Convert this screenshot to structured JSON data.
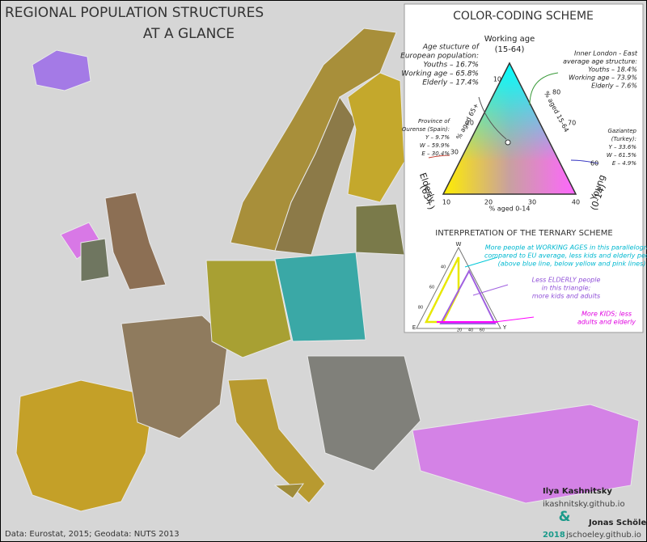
{
  "header": {
    "title": [
      "REGIONAL POPULATION STRUCTURES",
      "AT A GLANCE"
    ]
  },
  "legend": {
    "title": "COLOR-CODING SCHEME",
    "apex_top": [
      "Working age",
      "(15-64)"
    ],
    "apex_left": [
      "Elderly",
      "(65+)"
    ],
    "apex_right": [
      "Young",
      "(0-14)"
    ],
    "axis_left": "% aged 65+",
    "axis_right": "% aged 15-64",
    "axis_bottom": "% aged 0-14",
    "ticks_left": [
      "10",
      "20",
      "30"
    ],
    "ticks_right": [
      "80",
      "70",
      "60"
    ],
    "ticks_bottom": [
      "10",
      "20",
      "30",
      "40"
    ],
    "eu_average": [
      "Age stucture of",
      "European population:",
      "Youths – 16.7%",
      "Working age – 65.8%",
      "Elderly – 17.4%"
    ],
    "london": [
      "Inner London - East",
      "average age structure:",
      "Youths – 18.4%",
      "Working age – 73.9%",
      "Elderly –  7.6%"
    ],
    "ourense": [
      "Province of",
      "Ourense (Spain):",
      "Y –  9.7%",
      "W – 59.9%",
      "E – 30.4%"
    ],
    "gaziantep": [
      "Gaziantep",
      "(Turkey):",
      "Y – 33.6%",
      "W – 61.5%",
      "E –  4.9%"
    ]
  },
  "interpretation": {
    "title": "INTERPRETATION OF THE TERNARY SCHEME",
    "corners": [
      "W",
      "E",
      "Y"
    ],
    "ticks": [
      "80",
      "60",
      "40",
      "20",
      "40",
      "60"
    ],
    "working": [
      "More people at WORKING AGES in this parallelogram,",
      "compared to EU average, less kids and elderly people",
      "(above blue line, below yellow and pink lines)"
    ],
    "elderly": [
      "Less ELDERLY people",
      "in this triangle;",
      "more kids and adults"
    ],
    "kids": [
      "More KIDS; less",
      "adults and elderly"
    ]
  },
  "credits": {
    "author1": "Ilya Kashnitsky",
    "site1": "ikashnitsky.github.io",
    "amp": "&",
    "author2": "Jonas Schöley",
    "site2": "jschoeley.github.io",
    "year": "2018"
  },
  "source": "Data: Eurostat, 2015; Geodata: NUTS 2013"
}
